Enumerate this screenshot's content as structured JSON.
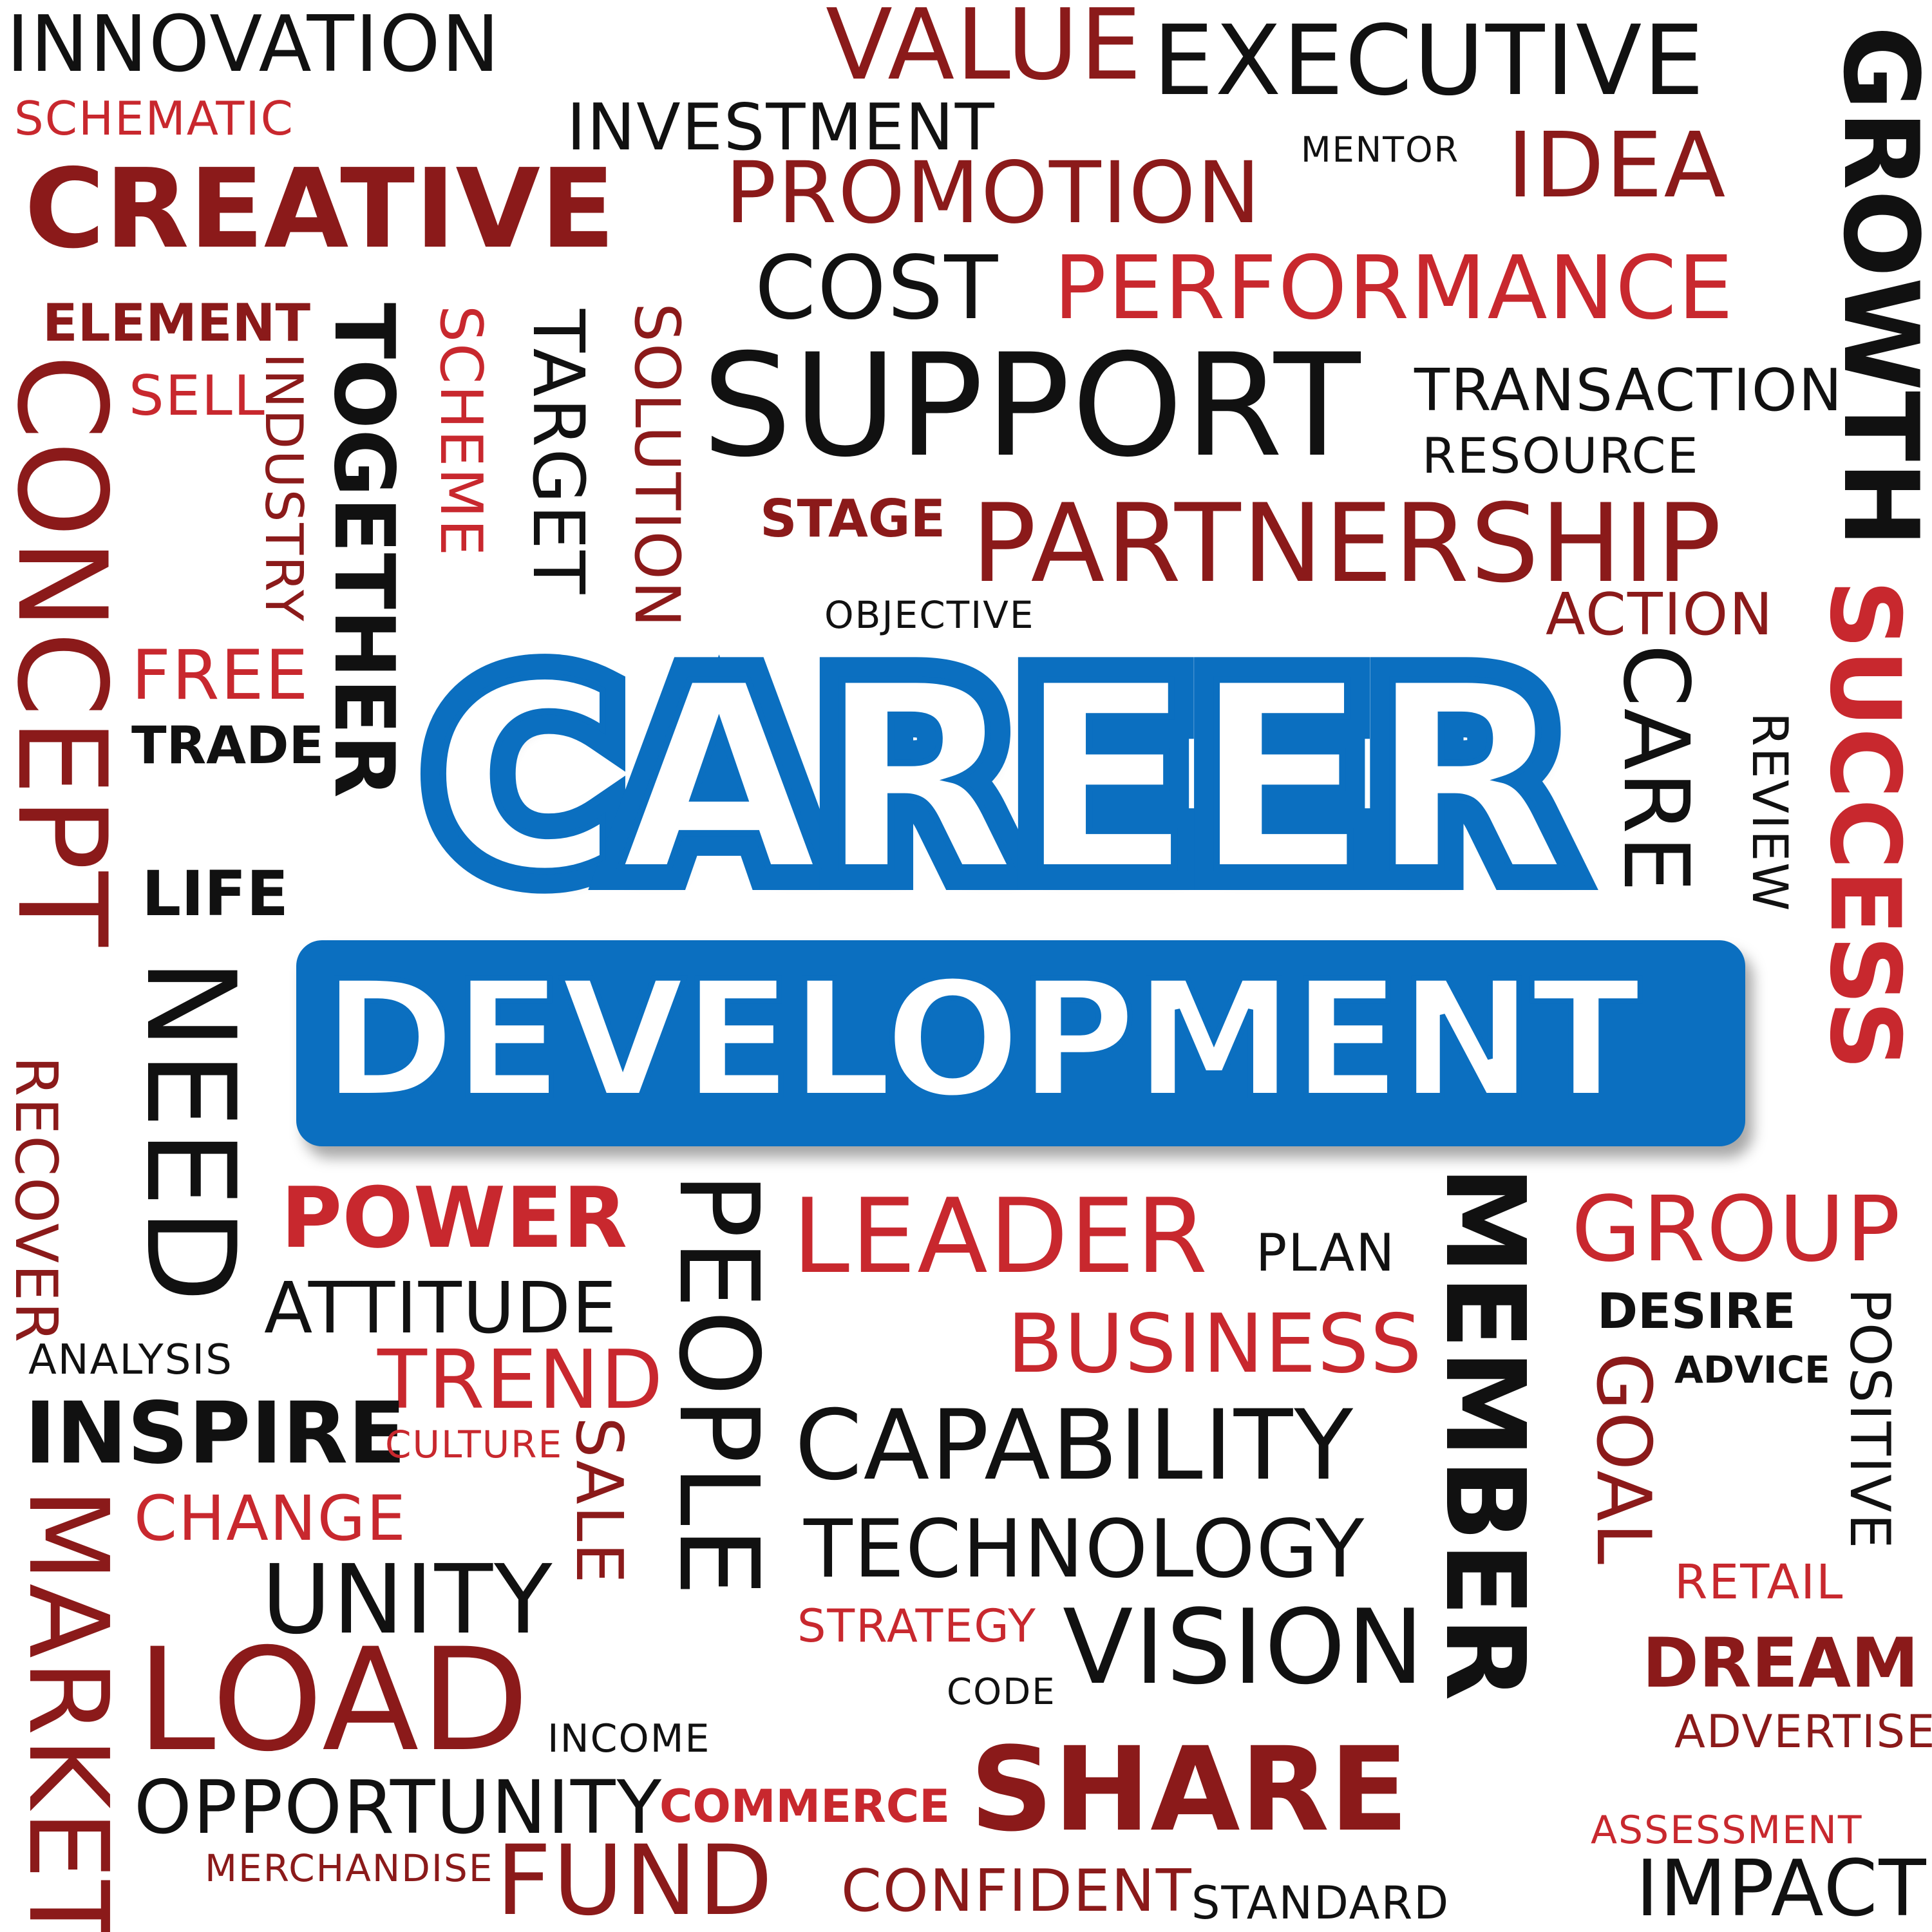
{
  "colors": {
    "dark": "#111111",
    "maroon": "#8b1a1a",
    "red": "#c8282e",
    "hero_blue": "#0b6fc0",
    "hero_text": "#ffffff",
    "background": "#ffffff"
  },
  "hero": {
    "line1": "CAREER",
    "line2": "DEVELOPMENT"
  },
  "words": {
    "innovation": "INNOVATION",
    "schematic": "SCHEMATIC",
    "value": "VALUE",
    "executive": "EXECUTIVE",
    "investment": "INVESTMENT",
    "growth": "GROWTH",
    "mentor": "MENTOR",
    "idea": "IDEA",
    "promotion": "PROMOTION",
    "creative": "CREATIVE",
    "cost": "COST",
    "performance": "PERFORMANCE",
    "element": "ELEMENT",
    "sell": "SELL",
    "concept": "CONCEPT",
    "industry": "INDUSTRY",
    "together": "TOGETHER",
    "scheme": "SCHEME",
    "target": "TARGET",
    "solution": "SOLUTION",
    "support": "SUPPORT",
    "transaction": "TRANSACTION",
    "resource": "RESOURCE",
    "stage": "STAGE",
    "partnership": "PARTNERSHIP",
    "objective": "OBJECTIVE",
    "action": "ACTION",
    "success": "SUCCESS",
    "free": "FREE",
    "trade": "TRADE",
    "care": "CARE",
    "review": "REVIEW",
    "life": "LIFE",
    "need": "NEED",
    "recover": "RECOVER",
    "power": "POWER",
    "people": "PEOPLE",
    "leader": "LEADER",
    "plan": "PLAN",
    "member": "MEMBER",
    "group": "GROUP",
    "attitude": "ATTITUDE",
    "business": "BUSINESS",
    "desire": "DESIRE",
    "positive": "POSITIVE",
    "analysis": "ANALYSIS",
    "trend": "TREND",
    "advice": "ADVICE",
    "inspire": "INSPIRE",
    "culture": "CULTURE",
    "sale": "SALE",
    "capability": "CAPABILITY",
    "goal": "GOAL",
    "change": "CHANGE",
    "technology": "TECHNOLOGY",
    "market": "MARKET",
    "unity": "UNITY",
    "retail": "RETAIL",
    "strategy": "STRATEGY",
    "vision": "VISION",
    "dream": "DREAM",
    "load": "LOAD",
    "code": "CODE",
    "income": "INCOME",
    "advertise": "ADVERTISE",
    "share": "SHARE",
    "opportunity": "OPPORTUNITY",
    "commerce": "COMMERCE",
    "assessment": "ASSESSMENT",
    "merchandise": "MERCHANDISE",
    "fund": "FUND",
    "confident": "CONFIDENT",
    "standard": "STANDARD",
    "impact": "IMPACT"
  }
}
